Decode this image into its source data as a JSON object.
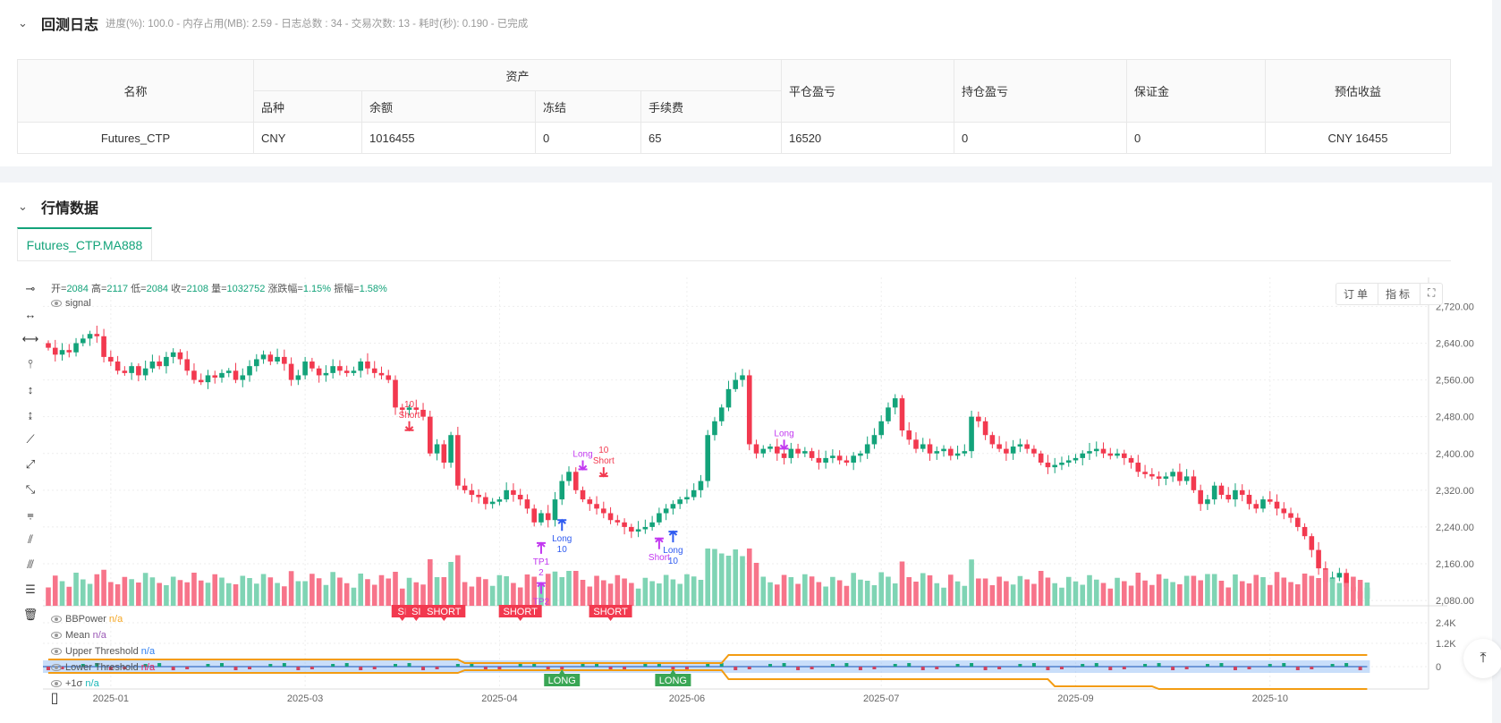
{
  "backtest_log": {
    "title": "回测日志",
    "status": "进度(%): 100.0  - 内存占用(MB): 2.59 - 日志总数 : 34 - 交易次数:  13 - 耗时(秒): 0.190 - 已完成",
    "table": {
      "headers": {
        "name": "名称",
        "assets": "资产",
        "variety": "品种",
        "balance": "余额",
        "frozen": "冻结",
        "fee": "手续费",
        "close_pnl": "平仓盈亏",
        "position_pnl": "持仓盈亏",
        "margin": "保证金",
        "est_profit": "预估收益"
      },
      "row": {
        "name": "Futures_CTP",
        "variety": "CNY",
        "balance": "1016455",
        "frozen": "0",
        "fee": "65",
        "close_pnl": "16520",
        "position_pnl": "0",
        "margin": "0",
        "est_profit": "CNY 16455"
      }
    }
  },
  "market": {
    "title": "行情数据",
    "tab": "Futures_CTP.MA888",
    "ohlc_legend": {
      "open_label": "开=",
      "open": "2084",
      "high_label": "高=",
      "high": "2117",
      "low_label": "低=",
      "low": "2084",
      "close_label": "收=",
      "close": "2108",
      "vol_label": "量=",
      "vol": "1032752",
      "chg_label": "涨跌幅=",
      "chg": "1.15%",
      "amp_label": "振幅=",
      "amp": "1.58%"
    },
    "signal_label": "signal",
    "buttons": {
      "orders": "订单",
      "indicators": "指标"
    },
    "indicator_legend": [
      {
        "name": "BBPower",
        "value": "n/a",
        "color": "#f5a623"
      },
      {
        "name": "Mean",
        "value": "n/a",
        "color": "#9b59b6"
      },
      {
        "name": "Upper Threshold",
        "value": "n/a",
        "color": "#2f7ff0"
      },
      {
        "name": "Lower Threshold",
        "value": "n/a",
        "color": "#e0245e"
      },
      {
        "name": "+1σ",
        "value": "n/a",
        "color": "#17b6b6"
      }
    ]
  },
  "chart_data": {
    "type": "candlestick",
    "colors": {
      "up": "#13a37a",
      "down": "#f2394f",
      "up_vol": "#7fd4b4",
      "down_vol": "#f7748a",
      "threshold": "#f39c12",
      "band": "#9dc3f5"
    },
    "price_ticks": [
      "2,720.00",
      "2,640.00",
      "2,560.00",
      "2,480.00",
      "2,400.00",
      "2,320.00",
      "2,240.00",
      "2,160.00",
      "2,080.00"
    ],
    "price_tick_values": [
      2720,
      2640,
      2560,
      2480,
      2400,
      2320,
      2240,
      2160,
      2080
    ],
    "indicator_ticks": [
      "2.4K",
      "1.2K",
      "0"
    ],
    "x_ticks": [
      {
        "label": "2025-01",
        "index": 9
      },
      {
        "label": "2025-03",
        "index": 37
      },
      {
        "label": "2025-04",
        "index": 65
      },
      {
        "label": "2025-06",
        "index": 92
      },
      {
        "label": "2025-07",
        "index": 120
      },
      {
        "label": "2025-09",
        "index": 148
      },
      {
        "label": "2025-10",
        "index": 176
      }
    ],
    "closes": [
      2630,
      2615,
      2625,
      2620,
      2640,
      2650,
      2660,
      2655,
      2610,
      2600,
      2580,
      2575,
      2590,
      2570,
      2585,
      2600,
      2590,
      2610,
      2620,
      2605,
      2580,
      2560,
      2555,
      2570,
      2565,
      2575,
      2580,
      2560,
      2570,
      2590,
      2605,
      2615,
      2600,
      2610,
      2595,
      2560,
      2570,
      2600,
      2585,
      2570,
      2575,
      2590,
      2580,
      2575,
      2580,
      2600,
      2585,
      2575,
      2570,
      2560,
      2500,
      2495,
      2500,
      2495,
      2480,
      2400,
      2420,
      2380,
      2440,
      2330,
      2320,
      2310,
      2305,
      2290,
      2295,
      2300,
      2320,
      2310,
      2300,
      2280,
      2250,
      2270,
      2255,
      2300,
      2340,
      2360,
      2320,
      2300,
      2290,
      2280,
      2270,
      2255,
      2250,
      2240,
      2230,
      2235,
      2240,
      2250,
      2270,
      2280,
      2290,
      2300,
      2305,
      2320,
      2340,
      2440,
      2470,
      2500,
      2540,
      2560,
      2570,
      2420,
      2400,
      2410,
      2415,
      2400,
      2390,
      2410,
      2400,
      2405,
      2390,
      2380,
      2390,
      2395,
      2385,
      2380,
      2395,
      2400,
      2420,
      2440,
      2470,
      2500,
      2520,
      2450,
      2430,
      2410,
      2420,
      2400,
      2405,
      2410,
      2395,
      2400,
      2405,
      2480,
      2470,
      2440,
      2420,
      2410,
      2400,
      2415,
      2420,
      2410,
      2400,
      2380,
      2370,
      2375,
      2380,
      2385,
      2390,
      2400,
      2405,
      2410,
      2400,
      2395,
      2400,
      2390,
      2380,
      2360,
      2355,
      2350,
      2345,
      2350,
      2360,
      2340,
      2350,
      2320,
      2290,
      2300,
      2330,
      2310,
      2300,
      2320,
      2310,
      2290,
      2280,
      2300,
      2295,
      2280,
      2270,
      2260,
      2240,
      2220,
      2190,
      2150,
      2120,
      2130,
      2140,
      2110,
      2100,
      2084,
      2108
    ],
    "last_candle": {
      "open": 2084,
      "high": 2117,
      "low": 2084,
      "close": 2108,
      "volume": 1032752
    },
    "signals": [
      {
        "index": 52,
        "price": 2470,
        "text": [
          "10",
          "Short"
        ],
        "dir": "down",
        "color": "#f2394f"
      },
      {
        "index": 74,
        "price": 2255,
        "text": [
          "Long",
          "10"
        ],
        "dir": "up",
        "color": "#2f5bf0"
      },
      {
        "index": 71,
        "price": 2205,
        "text": [
          "TP1",
          "2"
        ],
        "dir": "up",
        "color": "#c238f0"
      },
      {
        "index": 71,
        "price": 2118,
        "text": [
          "TP2"
        ],
        "dir": "up",
        "color": "#c238f0"
      },
      {
        "index": 77,
        "price": 2385,
        "text": [
          "Long"
        ],
        "dir": "down",
        "color": "#c238f0"
      },
      {
        "index": 80,
        "price": 2370,
        "text": [
          "10",
          "Short"
        ],
        "dir": "down",
        "color": "#f2394f"
      },
      {
        "index": 88,
        "price": 2215,
        "text": [
          "Short"
        ],
        "dir": "up",
        "color": "#c238f0"
      },
      {
        "index": 90,
        "price": 2230,
        "text": [
          "Long",
          "10"
        ],
        "dir": "up",
        "color": "#2f5bf0"
      },
      {
        "index": 106,
        "price": 2430,
        "text": [
          "Long"
        ],
        "dir": "down",
        "color": "#c238f0"
      }
    ],
    "pane_labels": [
      {
        "index": 51,
        "text": "SI",
        "kind": "short"
      },
      {
        "index": 53,
        "text": "SI",
        "kind": "short"
      },
      {
        "index": 57,
        "text": "SHORT",
        "kind": "short"
      },
      {
        "index": 68,
        "text": "SHORT",
        "kind": "short"
      },
      {
        "index": 81,
        "text": "SHORT",
        "kind": "short"
      },
      {
        "index": 74,
        "text": "LONG",
        "kind": "long"
      },
      {
        "index": 90,
        "text": "LONG",
        "kind": "long"
      }
    ]
  }
}
